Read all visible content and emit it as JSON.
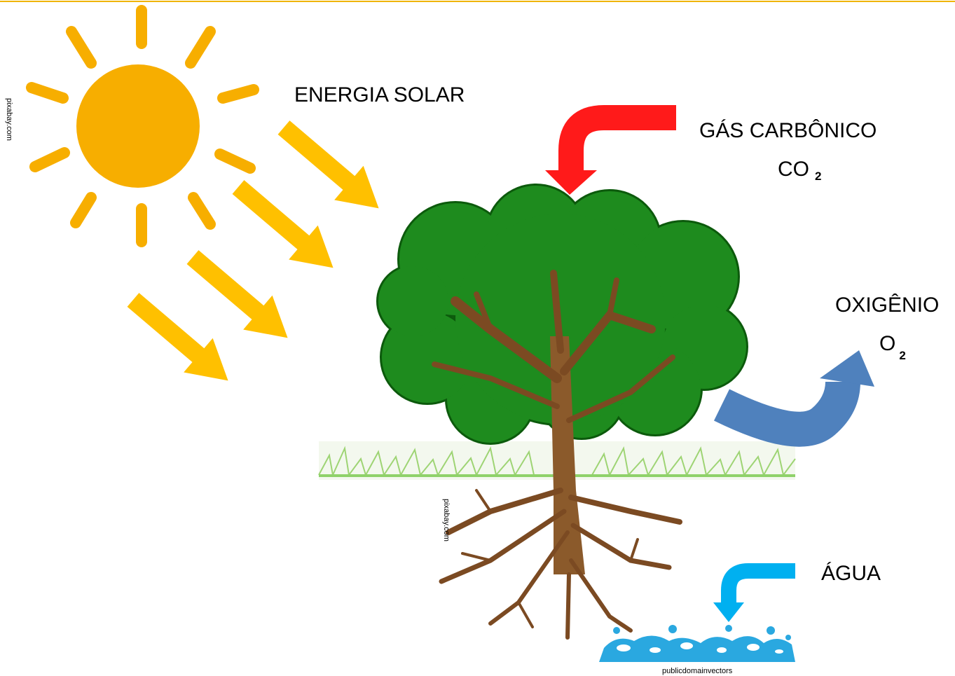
{
  "labels": {
    "solar_energy": "ENERGIA SOLAR",
    "carbon_dioxide": {
      "name": "GÁS CARBÔNICO",
      "formula": "CO",
      "subscript": "2"
    },
    "oxygen": {
      "name": "OXIGÊNIO",
      "formula": "O",
      "subscript": "2"
    },
    "water": "ÁGUA"
  },
  "credits": [
    "pixabay.com",
    "pixabay.com",
    "publicdomainvectors"
  ]
}
